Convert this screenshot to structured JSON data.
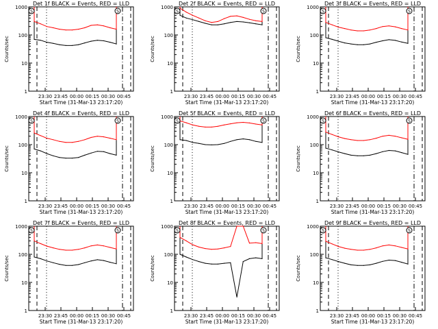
{
  "chart_data": [
    {
      "type": "line",
      "title": "Det 1f BLACK = Events, RED = LLD",
      "xlabel": "Start Time (31-Mar-13 23:17:20)",
      "ylabel": "Counts/sec",
      "yscale": "log",
      "ylim": [
        1,
        1000
      ],
      "x_ticks": [
        "23:30",
        "23:45",
        "00:00",
        "00:15",
        "00:30",
        "00:45"
      ],
      "y_ticks": [
        "1",
        "10",
        "100",
        "1000"
      ],
      "marker_label": "S",
      "series": [
        {
          "color": "#000000",
          "values": [
            70,
            65,
            55,
            50,
            45,
            42,
            42,
            45,
            52,
            60,
            65,
            62,
            55,
            48
          ]
        },
        {
          "color": "#ff0000",
          "values": [
            300,
            250,
            200,
            180,
            160,
            150,
            150,
            160,
            180,
            220,
            230,
            210,
            180,
            160
          ]
        }
      ]
    },
    {
      "type": "line",
      "title": "Det 2f BLACK = Events, RED = LLD",
      "xlabel": "Start Time (31-Mar-13 23:17:20)",
      "ylabel": "Counts/sec",
      "yscale": "log",
      "ylim": [
        1,
        1000
      ],
      "x_ticks": [
        "23:30",
        "23:45",
        "00:00",
        "00:15",
        "00:30",
        "00:45"
      ],
      "y_ticks": [
        "1",
        "10",
        "100",
        "1000"
      ],
      "marker_label": "S",
      "series": [
        {
          "color": "#000000",
          "values": [
            500,
            400,
            350,
            300,
            260,
            230,
            230,
            250,
            280,
            300,
            290,
            270,
            250,
            230
          ]
        },
        {
          "color": "#ff0000",
          "values": [
            900,
            650,
            500,
            400,
            320,
            280,
            300,
            380,
            460,
            480,
            420,
            360,
            320,
            300
          ]
        }
      ]
    },
    {
      "type": "line",
      "title": "Det 3f BLACK = Events, RED = LLD",
      "xlabel": "Start Time (31-Mar-13 23:17:20)",
      "ylabel": "Counts/sec",
      "yscale": "log",
      "ylim": [
        1,
        1000
      ],
      "x_ticks": [
        "23:30",
        "23:45",
        "00:00",
        "00:15",
        "00:30",
        "00:45"
      ],
      "y_ticks": [
        "1",
        "10",
        "100",
        "1000"
      ],
      "marker_label": "S",
      "series": [
        {
          "color": "#000000",
          "values": [
            80,
            70,
            60,
            52,
            48,
            45,
            45,
            48,
            55,
            62,
            68,
            64,
            56,
            50
          ]
        },
        {
          "color": "#ff0000",
          "values": [
            280,
            230,
            190,
            170,
            150,
            140,
            140,
            150,
            170,
            200,
            210,
            195,
            170,
            150
          ]
        }
      ]
    },
    {
      "type": "line",
      "title": "Det 4f BLACK = Events, RED = LLD",
      "xlabel": "Start Time (31-Mar-13 23:17:20)",
      "ylabel": "Counts/sec",
      "yscale": "log",
      "ylim": [
        1,
        1000
      ],
      "x_ticks": [
        "23:30",
        "23:45",
        "00:00",
        "00:15",
        "00:30",
        "00:45"
      ],
      "y_ticks": [
        "1",
        "10",
        "100",
        "1000"
      ],
      "marker_label": "S",
      "series": [
        {
          "color": "#000000",
          "values": [
            70,
            60,
            48,
            40,
            35,
            33,
            33,
            35,
            42,
            50,
            58,
            56,
            48,
            42
          ]
        },
        {
          "color": "#ff0000",
          "values": [
            260,
            210,
            170,
            150,
            130,
            120,
            120,
            130,
            150,
            180,
            200,
            190,
            170,
            150
          ]
        }
      ]
    },
    {
      "type": "line",
      "title": "Det 5f BLACK = Events, RED = LLD",
      "xlabel": "Start Time (31-Mar-13 23:17:20)",
      "ylabel": "Counts/sec",
      "yscale": "log",
      "ylim": [
        1,
        1000
      ],
      "x_ticks": [
        "23:30",
        "23:45",
        "00:00",
        "00:15",
        "00:30",
        "00:45"
      ],
      "y_ticks": [
        "1",
        "10",
        "100",
        "1000"
      ],
      "marker_label": "S",
      "series": [
        {
          "color": "#000000",
          "values": [
            150,
            140,
            120,
            110,
            100,
            98,
            100,
            110,
            130,
            150,
            160,
            150,
            130,
            120
          ]
        },
        {
          "color": "#ff0000",
          "values": [
            700,
            600,
            500,
            450,
            420,
            420,
            450,
            500,
            550,
            600,
            620,
            590,
            540,
            500
          ]
        }
      ]
    },
    {
      "type": "line",
      "title": "Det 6f BLACK = Events, RED = LLD",
      "xlabel": "Start Time (31-Mar-13 23:17:20)",
      "ylabel": "Counts/sec",
      "yscale": "log",
      "ylim": [
        1,
        1000
      ],
      "x_ticks": [
        "23:30",
        "23:45",
        "00:00",
        "00:15",
        "00:30",
        "00:45"
      ],
      "y_ticks": [
        "1",
        "10",
        "100",
        "1000"
      ],
      "marker_label": "S",
      "series": [
        {
          "color": "#000000",
          "values": [
            75,
            65,
            55,
            48,
            42,
            40,
            40,
            42,
            48,
            56,
            62,
            60,
            52,
            45
          ]
        },
        {
          "color": "#ff0000",
          "values": [
            280,
            230,
            190,
            165,
            150,
            140,
            140,
            150,
            170,
            200,
            215,
            200,
            175,
            155
          ]
        }
      ]
    },
    {
      "type": "line",
      "title": "Det 7f BLACK = Events, RED = LLD",
      "xlabel": "Start Time (31-Mar-13 23:17:20)",
      "ylabel": "Counts/sec",
      "yscale": "log",
      "ylim": [
        1,
        1000
      ],
      "x_ticks": [
        "23:30",
        "23:45",
        "00:00",
        "00:15",
        "00:30",
        "00:45"
      ],
      "y_ticks": [
        "1",
        "10",
        "100",
        "1000"
      ],
      "marker_label": "S",
      "series": [
        {
          "color": "#000000",
          "values": [
            80,
            70,
            58,
            50,
            44,
            40,
            40,
            43,
            50,
            58,
            64,
            60,
            52,
            46
          ]
        },
        {
          "color": "#ff0000",
          "values": [
            300,
            240,
            195,
            170,
            150,
            140,
            140,
            150,
            170,
            200,
            215,
            200,
            175,
            155
          ]
        }
      ]
    },
    {
      "type": "line",
      "title": "Det 8f BLACK = Events, RED = LLD",
      "xlabel": "Start Time (31-Mar-13 23:17:20)",
      "ylabel": "Counts/sec",
      "yscale": "log",
      "ylim": [
        1,
        1000
      ],
      "x_ticks": [
        "23:30",
        "23:45",
        "00:00",
        "00:15",
        "00:30",
        "00:45"
      ],
      "y_ticks": [
        "1",
        "10",
        "100",
        "1000"
      ],
      "marker_label": "S",
      "series": [
        {
          "color": "#000000",
          "values": [
            100,
            80,
            65,
            55,
            48,
            45,
            45,
            48,
            50,
            3,
            55,
            70,
            75,
            70
          ]
        },
        {
          "color": "#ff0000",
          "values": [
            400,
            300,
            220,
            180,
            160,
            150,
            155,
            170,
            190,
            1000,
            1000,
            250,
            260,
            240
          ]
        }
      ]
    },
    {
      "type": "line",
      "title": "Det 9f BLACK = Events, RED = LLD",
      "xlabel": "Start Time (31-Mar-13 23:17:20)",
      "ylabel": "Counts/sec",
      "yscale": "log",
      "ylim": [
        1,
        1000
      ],
      "x_ticks": [
        "23:30",
        "23:45",
        "00:00",
        "00:15",
        "00:30",
        "00:45"
      ],
      "y_ticks": [
        "1",
        "10",
        "100",
        "1000"
      ],
      "marker_label": "S",
      "series": [
        {
          "color": "#000000",
          "values": [
            75,
            65,
            55,
            48,
            42,
            40,
            40,
            42,
            48,
            56,
            62,
            60,
            52,
            45
          ]
        },
        {
          "color": "#ff0000",
          "values": [
            290,
            235,
            190,
            165,
            150,
            140,
            140,
            150,
            170,
            200,
            215,
            200,
            175,
            155
          ]
        }
      ]
    }
  ]
}
